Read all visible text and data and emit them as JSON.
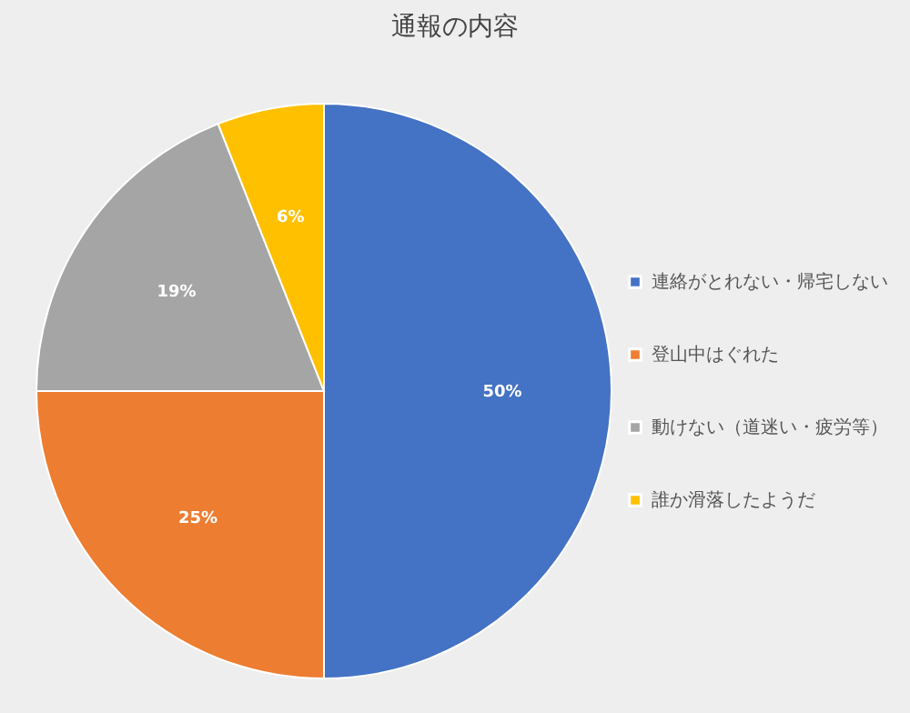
{
  "chart_data": {
    "type": "pie",
    "title": "通報の内容",
    "categories": [
      "連絡がとれない・帰宅しない",
      "登山中はぐれた",
      "動けない（道迷い・疲労等）",
      "誰か滑落したようだ"
    ],
    "values": [
      50,
      25,
      19,
      6
    ],
    "colors": [
      "#4472c4",
      "#ed7d31",
      "#a5a5a5",
      "#ffc000"
    ],
    "value_labels": [
      "50%",
      "25%",
      "19%",
      "6%"
    ],
    "legend": "right"
  }
}
